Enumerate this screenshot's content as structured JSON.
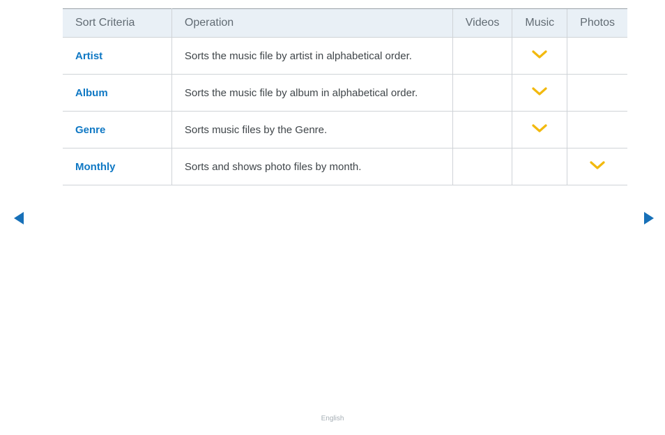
{
  "colors": {
    "header_bg": "#e9f0f6",
    "header_text": "#616b73",
    "cell_text": "#3f4549",
    "link_text": "#0f78c4",
    "border_top": "#9aa1a7",
    "border": "#cfd3d7",
    "check_color": "#f2b90e",
    "nav_color": "#1770b8",
    "footer_text": "#a6aeb5",
    "page_bg": "#ffffff"
  },
  "table": {
    "headers": {
      "criteria": "Sort Criteria",
      "operation": "Operation",
      "videos": "Videos",
      "music": "Music",
      "photos": "Photos"
    },
    "rows": [
      {
        "criteria": "Artist",
        "operation": "Sorts the music file by artist in alphabetical order.",
        "videos": false,
        "music": true,
        "photos": false
      },
      {
        "criteria": "Album",
        "operation": "Sorts the music file by album in alphabetical order.",
        "videos": false,
        "music": true,
        "photos": false
      },
      {
        "criteria": "Genre",
        "operation": "Sorts music files by the Genre.",
        "videos": false,
        "music": true,
        "photos": false
      },
      {
        "criteria": "Monthly",
        "operation": "Sorts and shows photo files by month.",
        "videos": false,
        "music": false,
        "photos": true
      }
    ]
  },
  "footer": {
    "language": "English"
  }
}
